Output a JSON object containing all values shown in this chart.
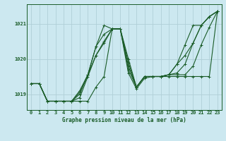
{
  "title": "Graphe pression niveau de la mer (hPa)",
  "background_color": "#cce8f0",
  "grid_color": "#b0cfd8",
  "line_color": "#1a5c28",
  "xlim": [
    -0.5,
    23.5
  ],
  "ylim": [
    1018.55,
    1021.55
  ],
  "yticks": [
    1019,
    1020,
    1021
  ],
  "xticks": [
    0,
    1,
    2,
    3,
    4,
    5,
    6,
    7,
    8,
    9,
    10,
    11,
    12,
    13,
    14,
    15,
    16,
    17,
    18,
    19,
    20,
    21,
    22,
    23
  ],
  "series": [
    [
      1019.3,
      1019.3,
      1018.8,
      1018.8,
      1018.8,
      1018.8,
      1018.8,
      1018.8,
      1019.2,
      1019.5,
      1020.85,
      1020.85,
      1019.6,
      1019.15,
      1019.45,
      1019.5,
      1019.5,
      1019.5,
      1019.5,
      1019.5,
      1019.5,
      1019.5,
      1019.5,
      1021.35
    ],
    [
      1019.3,
      1019.3,
      1018.8,
      1018.8,
      1018.8,
      1018.8,
      1018.9,
      1019.5,
      1020.1,
      1020.5,
      1020.85,
      1020.85,
      1019.8,
      1019.2,
      1019.5,
      1019.5,
      1019.5,
      1019.55,
      1019.55,
      1019.55,
      1019.8,
      1020.4,
      1020.9,
      1021.35
    ],
    [
      1019.3,
      1019.3,
      1018.8,
      1018.8,
      1018.8,
      1018.8,
      1019.0,
      1019.55,
      1020.35,
      1020.95,
      1020.85,
      1020.85,
      1020.0,
      1019.2,
      1019.5,
      1019.5,
      1019.5,
      1019.55,
      1019.6,
      1019.85,
      1020.45,
      1020.95,
      1021.2,
      1021.35
    ],
    [
      1019.3,
      1019.3,
      1018.8,
      1018.8,
      1018.8,
      1018.8,
      1019.1,
      1019.55,
      1020.35,
      1020.7,
      1020.85,
      1020.85,
      1019.7,
      1019.2,
      1019.5,
      1019.5,
      1019.5,
      1019.55,
      1019.85,
      1020.4,
      1020.95,
      1020.95,
      1021.2,
      1021.35
    ],
    [
      1019.3,
      1019.3,
      1018.8,
      1018.8,
      1018.8,
      1018.8,
      1019.05,
      1019.55,
      1020.1,
      1020.45,
      1020.85,
      1020.85,
      1019.9,
      1019.2,
      1019.5,
      1019.5,
      1019.5,
      1019.55,
      1019.85,
      1020.1,
      1020.45,
      1020.95,
      1021.2,
      1021.35
    ]
  ]
}
